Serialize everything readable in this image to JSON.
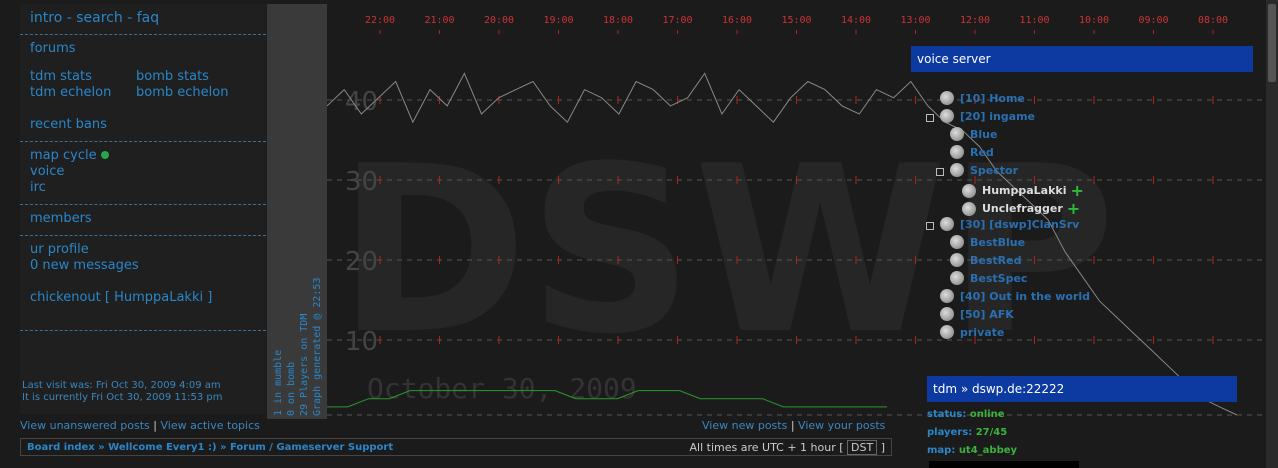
{
  "nav": {
    "top": [
      "intro -",
      "search -",
      "faq"
    ],
    "forums": "forums",
    "stats": [
      "tdm stats",
      "bomb stats",
      "tdm echelon",
      "bomb echelon"
    ],
    "bans": "recent bans",
    "mapcycle": "map cycle",
    "voice": "voice",
    "irc": "irc",
    "members": "members",
    "profile": "ur profile",
    "messages": "0 new messages",
    "logout": "chickenout [ HumppaLakki ]"
  },
  "visit": {
    "last": "Last visit was: Fri Oct 30, 2009 4:09 am",
    "now": "It is currently Fri Oct 30, 2009 11:53 pm"
  },
  "vertical": [
    "1 in mumble",
    "0 on bomb",
    "29 Players on TDM",
    "Graph generated @ 22:53"
  ],
  "voice": {
    "title": "voice server",
    "rows": [
      {
        "label": "[10] Home",
        "type": "ch"
      },
      {
        "label": "[20] ingame",
        "type": "ch"
      },
      {
        "label": "Blue",
        "type": "ch"
      },
      {
        "label": "Red",
        "type": "ch"
      },
      {
        "label": "Spector",
        "type": "ch"
      },
      {
        "label": "HumppaLakki",
        "type": "user"
      },
      {
        "label": "Unclefragger",
        "type": "user"
      },
      {
        "label": "[30] [dswp]ClanSrv",
        "type": "ch"
      },
      {
        "label": "BestBlue",
        "type": "ch"
      },
      {
        "label": "BestRed",
        "type": "ch"
      },
      {
        "label": "BestSpec",
        "type": "ch"
      },
      {
        "label": "[40] Out in the world",
        "type": "ch"
      },
      {
        "label": "[50] AFK",
        "type": "ch"
      },
      {
        "label": "private",
        "type": "ch"
      }
    ]
  },
  "tdm": {
    "title": "tdm » dswp.de:22222",
    "status_label": "status:",
    "status": "online",
    "players_label": "players:",
    "players": "27/45",
    "map_label": "map:",
    "map": "ut4_abbey"
  },
  "bottom": {
    "unanswered": "View unanswered posts",
    "active": "View active topics",
    "sep": "|",
    "new": "View new posts",
    "your": "View your posts"
  },
  "crumb": {
    "path": "Board index » Wellcome Every1 :) » Forum / Gameserver Support",
    "tz": "All times are UTC + 1 hour [",
    "dst": "DST",
    "tz_end": "]"
  },
  "chart_data": {
    "type": "line",
    "x_ticks": [
      "22:00",
      "21:00",
      "20:00",
      "19:00",
      "18:00",
      "17:00",
      "16:00",
      "15:00",
      "14:00",
      "13:00",
      "12:00",
      "11:00",
      "10:00",
      "09:00",
      "08:00"
    ],
    "y_ticks": [
      "40",
      "30",
      "20",
      "10"
    ],
    "watermark": "DSWP",
    "date_label": "October 30, 2009",
    "series": [
      {
        "values": [
          38,
          40,
          37,
          39,
          41,
          36,
          40,
          38,
          42,
          37,
          39,
          40,
          41,
          38,
          36,
          40,
          39,
          37,
          41,
          40,
          38,
          39,
          42,
          37,
          40,
          38,
          36,
          39,
          41,
          40,
          38,
          37,
          40,
          39,
          41,
          38,
          36,
          35,
          33,
          30,
          28,
          26,
          24,
          20,
          17,
          14,
          12,
          10,
          8,
          6,
          4,
          2,
          1,
          0
        ]
      },
      {
        "values": [
          1,
          1,
          2,
          2,
          3,
          3,
          3,
          3,
          3,
          3,
          3,
          3,
          2,
          2,
          2,
          3,
          3,
          3,
          2,
          2,
          2,
          2,
          1,
          1,
          1,
          1,
          1,
          1
        ]
      }
    ]
  },
  "colors": {
    "accent": "#2a86c8",
    "voicehead": "#0c3aa0",
    "grid": "#b02020"
  }
}
